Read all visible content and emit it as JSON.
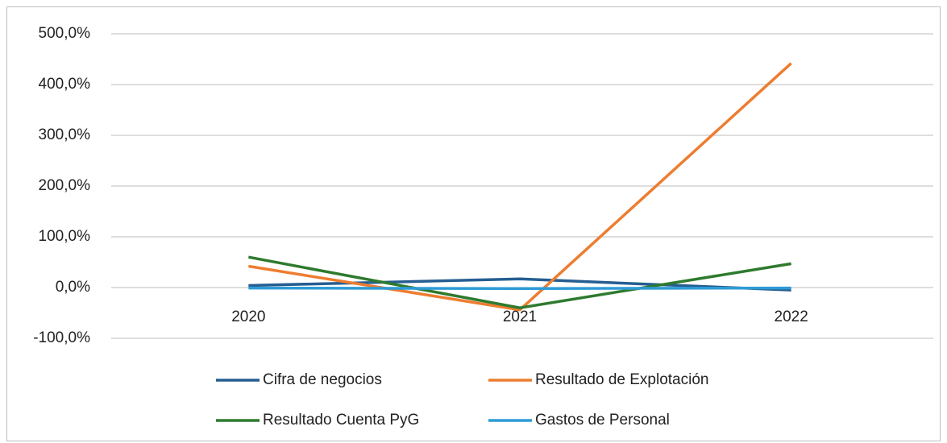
{
  "chart_data": {
    "type": "line",
    "categories": [
      "2020",
      "2021",
      "2022"
    ],
    "series": [
      {
        "name": "Cifra de negocios",
        "color": "#255e91",
        "values": [
          4,
          17,
          -5
        ]
      },
      {
        "name": "Resultado de Explotación",
        "color": "#ed7d31",
        "values": [
          42,
          -44,
          442
        ]
      },
      {
        "name": "Resultado Cuenta PyG",
        "color": "#2e7a2e",
        "values": [
          60,
          -40,
          47
        ]
      },
      {
        "name": "Gastos de Personal",
        "color": "#2e9bd6",
        "values": [
          -1,
          -2,
          -1
        ]
      }
    ],
    "ylim": [
      -100,
      500
    ],
    "yticks": [
      {
        "value": -100,
        "label": "-100,0%"
      },
      {
        "value": 0,
        "label": "0,0%"
      },
      {
        "value": 100,
        "label": "100,0%"
      },
      {
        "value": 200,
        "label": "200,0%"
      },
      {
        "value": 300,
        "label": "300,0%"
      },
      {
        "value": 400,
        "label": "400,0%"
      },
      {
        "value": 500,
        "label": "500,0%"
      }
    ],
    "grid": true,
    "legend": "bottom"
  }
}
